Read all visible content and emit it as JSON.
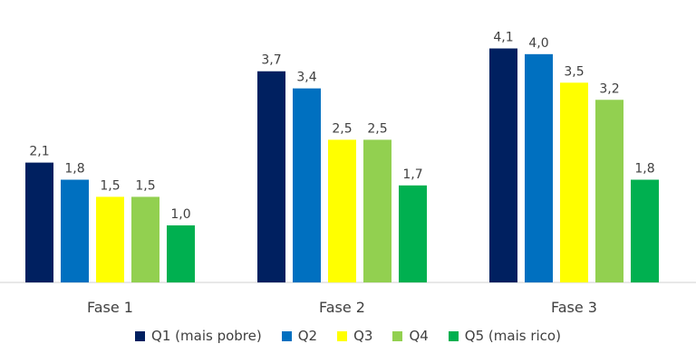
{
  "chart_data": {
    "type": "bar",
    "categories": [
      "Fase 1",
      "Fase 2",
      "Fase 3"
    ],
    "series": [
      {
        "name": "Q1 (mais pobre)",
        "color": "#002060",
        "values": [
          2.1,
          3.7,
          4.1
        ],
        "labels": [
          "2,1",
          "3,7",
          "4,1"
        ]
      },
      {
        "name": "Q2",
        "color": "#0070C0",
        "values": [
          1.8,
          3.4,
          4.0
        ],
        "labels": [
          "1,8",
          "3,4",
          "4,0"
        ]
      },
      {
        "name": "Q3",
        "color": "#FFFF00",
        "values": [
          1.5,
          2.5,
          3.5
        ],
        "labels": [
          "1,5",
          "2,5",
          "3,5"
        ]
      },
      {
        "name": "Q4",
        "color": "#92D050",
        "values": [
          1.5,
          2.5,
          3.2
        ],
        "labels": [
          "1,5",
          "2,5",
          "3,2"
        ]
      },
      {
        "name": "Q5 (mais rico)",
        "color": "#00B050",
        "values": [
          1.0,
          1.7,
          1.8
        ],
        "labels": [
          "1,0",
          "1,7",
          "1,8"
        ]
      }
    ],
    "ylim": [
      0,
      4.6
    ],
    "grid": false,
    "legend": "bottom"
  }
}
